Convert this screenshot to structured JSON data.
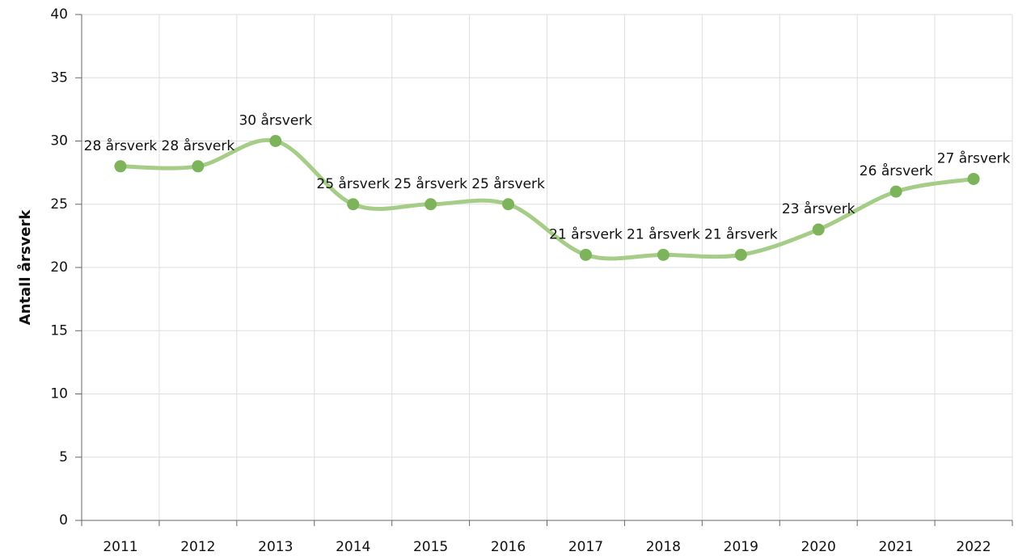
{
  "chart_data": {
    "type": "line",
    "y_label": "Antall årsverk",
    "categories": [
      "2011",
      "2012",
      "2013",
      "2014",
      "2015",
      "2016",
      "2017",
      "2018",
      "2019",
      "2020",
      "2021",
      "2022"
    ],
    "values": [
      28,
      28,
      30,
      25,
      25,
      25,
      21,
      21,
      21,
      23,
      26,
      27
    ],
    "value_labels": [
      "28 årsverk",
      "28 årsverk",
      "30 årsverk",
      "25 årsverk",
      "25 årsverk",
      "25 årsverk",
      "21 årsverk",
      "21 årsverk",
      "21 årsverk",
      "23 årsverk",
      "26 årsverk",
      "27 årsverk"
    ],
    "color": "#7db35a",
    "smooth": true,
    "ylim": [
      0,
      40
    ],
    "yticks": [
      0,
      5,
      10,
      15,
      20,
      25,
      30,
      35,
      40
    ],
    "grid": true
  }
}
